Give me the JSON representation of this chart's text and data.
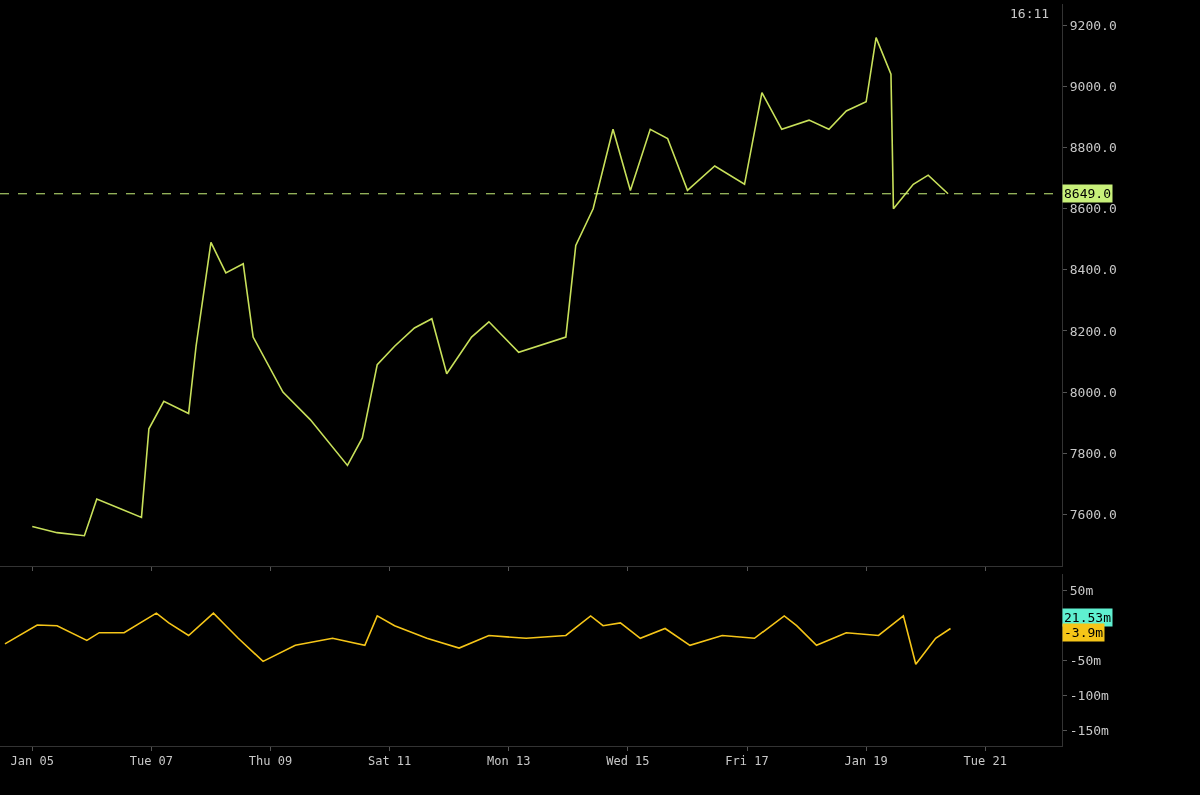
{
  "chart_data": [
    {
      "type": "line",
      "annotations": [
        "16:11"
      ],
      "x": [
        "--01-05T00:00",
        "--01-05T10:00",
        "--01-05T21:00",
        "--01-06T02:00",
        "--01-06T20:00",
        "--01-06T23:00",
        "--01-07T05:00",
        "--01-07T15:00",
        "--01-07T18:00",
        "--01-08T00:00",
        "--01-08T06:00",
        "--01-08T13:00",
        "--01-08T17:00",
        "--01-09T05:00",
        "--01-09T16:00",
        "--01-10T07:00",
        "--01-10T13:00",
        "--01-10T19:00",
        "--01-11T02:00",
        "--01-11T10:00",
        "--01-11T17:00",
        "--01-11T23:00",
        "--01-12T09:00",
        "--01-12T16:00",
        "--01-13T04:00",
        "--01-13T23:00",
        "--01-14T03:00",
        "--01-14T10:00",
        "--01-14T18:00",
        "--01-15T01:00",
        "--01-15T09:00",
        "--01-15T16:00",
        "--01-16T00:00",
        "--01-16T11:00",
        "--01-16T23:00",
        "--01-17T06:00",
        "--01-17T14:00",
        "--01-18T01:00",
        "--01-18T09:00",
        "--01-18T16:00",
        "--01-19T00:00",
        "--01-19T04:00",
        "--01-19T10:00",
        "--01-19T11:00",
        "--01-19T19:00",
        "--01-20T01:00",
        "--01-20T09:00"
      ],
      "series": [
        {
          "color": "#c8e05a",
          "values": [
            7560,
            7540,
            7530,
            7650,
            7590,
            7880,
            7970,
            7930,
            8150,
            8490,
            8390,
            8420,
            8180,
            8000,
            7910,
            7760,
            7850,
            8090,
            8150,
            8210,
            8240,
            8060,
            8180,
            8230,
            8130,
            8180,
            8480,
            8600,
            8860,
            8660,
            8860,
            8830,
            8660,
            8740,
            8680,
            8980,
            8860,
            8890,
            8860,
            8920,
            8950,
            9160,
            9040,
            8600,
            8680,
            8710,
            8649
          ]
        }
      ],
      "xlim": [
        "--01-04T11:00",
        "--01-22T07:00"
      ],
      "xticks": [
        {
          "value": "--01-05",
          "label": "Jan 05"
        },
        {
          "value": "--01-07",
          "label": "Tue 07"
        },
        {
          "value": "--01-09",
          "label": "Thu 09"
        },
        {
          "value": "--01-11",
          "label": "Sat 11"
        },
        {
          "value": "--01-13",
          "label": "Mon 13"
        },
        {
          "value": "--01-15",
          "label": "Wed 15"
        },
        {
          "value": "--01-17",
          "label": "Fri 17"
        },
        {
          "value": "--01-19",
          "label": "Jan 19"
        },
        {
          "value": "--01-21",
          "label": "Tue 21"
        }
      ],
      "ylim": [
        7430,
        9270
      ],
      "yticks": [
        {
          "value": 7600,
          "label": "7600.0"
        },
        {
          "value": 7800,
          "label": "7800.0"
        },
        {
          "value": 8000,
          "label": "8000.0"
        },
        {
          "value": 8200,
          "label": "8200.0"
        },
        {
          "value": 8400,
          "label": "8400.0"
        },
        {
          "value": 8600,
          "label": "8600.0"
        },
        {
          "value": 8800,
          "label": "8800.0"
        },
        {
          "value": 9000,
          "label": "9000.0"
        },
        {
          "value": 9200,
          "label": "9200.0"
        }
      ],
      "ref_lines": [
        {
          "axis": "y",
          "value": 8649,
          "label": "8649.0",
          "color": "#c8f07a",
          "line_style": "dashed"
        }
      ],
      "tick_labels": "y"
    },
    {
      "type": "line",
      "x": [
        "--01-04T13:00",
        "--01-05T02:00",
        "--01-05T10:00",
        "--01-05T22:00",
        "--01-06T03:00",
        "--01-06T13:00",
        "--01-07T02:00",
        "--01-07T07:00",
        "--01-07T15:00",
        "--01-08T01:00",
        "--01-08T06:00",
        "--01-08T11:00",
        "--01-08T21:00",
        "--01-09T10:00",
        "--01-10T01:00",
        "--01-10T14:00",
        "--01-10T19:00",
        "--01-11T02:00",
        "--01-11T15:00",
        "--01-12T04:00",
        "--01-12T16:00",
        "--01-13T07:00",
        "--01-13T23:00",
        "--01-14T09:00",
        "--01-14T14:00",
        "--01-14T21:00",
        "--01-15T05:00",
        "--01-15T15:00",
        "--01-16T01:00",
        "--01-16T14:00",
        "--01-17T03:00",
        "--01-17T15:00",
        "--01-17T20:00",
        "--01-18T04:00",
        "--01-18T16:00",
        "--01-19T05:00",
        "--01-19T15:00",
        "--01-19T20:00",
        "--01-20T04:00",
        "--01-20T10:00"
      ],
      "series": [
        {
          "color": "#f5c518",
          "values": [
            -26,
            1,
            0,
            -21,
            -10,
            -10,
            18,
            4,
            -14,
            18,
            0,
            -18,
            -51,
            -28,
            -18,
            -28,
            14,
            0,
            -18,
            -32,
            -14,
            -18,
            -14,
            14,
            0,
            4,
            -18,
            -4,
            -28,
            -14,
            -18,
            14,
            0,
            -28,
            -10,
            -14,
            14,
            -55,
            -18,
            -4
          ]
        }
      ],
      "annotations": [
        "21.53m",
        "-3.9m"
      ],
      "xlim": [
        "--01-04T11:00",
        "--01-22T07:00"
      ],
      "xticks": [
        {
          "value": "--01-05",
          "label": "Jan 05"
        },
        {
          "value": "--01-07",
          "label": "Tue 07"
        },
        {
          "value": "--01-09",
          "label": "Thu 09"
        },
        {
          "value": "--01-11",
          "label": "Sat 11"
        },
        {
          "value": "--01-13",
          "label": "Mon 13"
        },
        {
          "value": "--01-15",
          "label": "Wed 15"
        },
        {
          "value": "--01-17",
          "label": "Fri 17"
        },
        {
          "value": "--01-19",
          "label": "Jan 19"
        },
        {
          "value": "--01-21",
          "label": "Tue 21"
        }
      ],
      "ylim": [
        -172,
        74
      ],
      "yticks": [
        {
          "value": 50,
          "label": "50m"
        },
        {
          "value": -50,
          "label": "-50m"
        },
        {
          "value": -100,
          "label": "-100m"
        },
        {
          "value": -150,
          "label": "-150m"
        }
      ]
    }
  ]
}
